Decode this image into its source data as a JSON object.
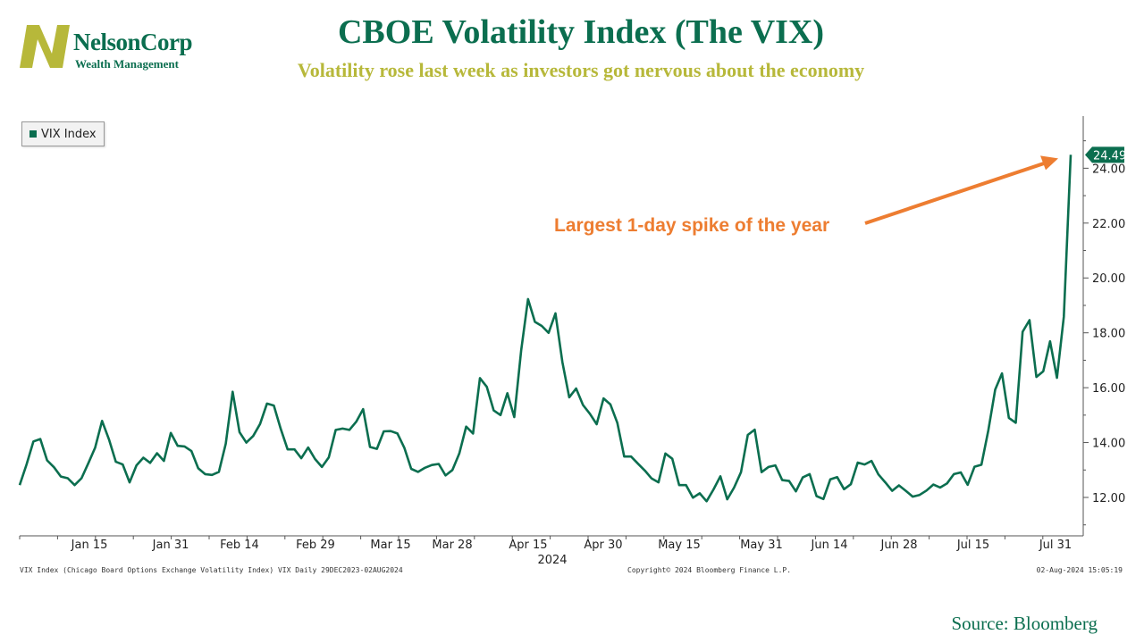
{
  "logo": {
    "name": "NelsonCorp",
    "subtitle": "Wealth Management"
  },
  "header": {
    "title": "CBOE Volatility Index (The VIX)",
    "subtitle": "Volatility rose last week as investors got nervous about the economy"
  },
  "legend": {
    "label": "VIX Index"
  },
  "annotation": {
    "text": "Largest 1-day spike of the year",
    "color": "#ed7d31"
  },
  "last_value_label": "24.49",
  "footer": {
    "left": "VIX Index (Chicago Board Options Exchange Volatility Index) VIX  Daily 29DEC2023-02AUG2024",
    "center": "Copyright© 2024 Bloomberg Finance L.P.",
    "right": "02-Aug-2024 15:05:19"
  },
  "source": "Source:  Bloomberg",
  "colors": {
    "line": "#0b6e4f",
    "title": "#0b6e4f",
    "subtitle": "#b7b83a",
    "logo_mark": "#b7b83a"
  },
  "chart_data": {
    "type": "line",
    "title": "CBOE Volatility Index (The VIX)",
    "series": [
      {
        "name": "VIX Index",
        "values": [
          12.45,
          13.2,
          14.04,
          14.13,
          13.35,
          13.1,
          12.76,
          12.7,
          12.45,
          12.7,
          13.25,
          13.82,
          14.79,
          14.12,
          13.3,
          13.2,
          12.55,
          13.17,
          13.45,
          13.26,
          13.61,
          13.33,
          14.35,
          13.88,
          13.86,
          13.69,
          13.06,
          12.85,
          12.82,
          12.93,
          13.96,
          15.85,
          14.38,
          14.0,
          14.24,
          14.68,
          15.42,
          15.35,
          14.5,
          13.75,
          13.75,
          13.43,
          13.82,
          13.4,
          13.11,
          13.46,
          14.46,
          14.51,
          14.46,
          14.76,
          15.22,
          13.84,
          13.77,
          14.41,
          14.42,
          14.33,
          13.81,
          13.04,
          12.93,
          13.08,
          13.18,
          13.22,
          12.8,
          13.0,
          13.6,
          14.58,
          14.33,
          16.35,
          16.03,
          15.17,
          15.0,
          15.8,
          14.93,
          17.35,
          19.23,
          18.4,
          18.25,
          18.0,
          18.71,
          16.94,
          15.65,
          15.97,
          15.37,
          15.05,
          14.67,
          15.61,
          15.39,
          14.72,
          13.49,
          13.49,
          13.23,
          12.98,
          12.69,
          12.55,
          13.6,
          13.41,
          12.45,
          12.45,
          11.99,
          12.15,
          11.86,
          12.29,
          12.77,
          11.93,
          12.36,
          12.92,
          14.28,
          14.47,
          12.92,
          13.11,
          13.17,
          12.63,
          12.6,
          12.22,
          12.73,
          12.85,
          12.05,
          11.94,
          12.66,
          12.74,
          12.3,
          12.48,
          13.27,
          13.2,
          13.33,
          12.84,
          12.55,
          12.24,
          12.44,
          12.24,
          12.03,
          12.09,
          12.25,
          12.47,
          12.36,
          12.51,
          12.85,
          12.91,
          12.46,
          13.12,
          13.19,
          14.44,
          15.93,
          16.52,
          14.9,
          14.72,
          18.04,
          18.46,
          16.39,
          16.6,
          17.69,
          16.36,
          18.59,
          24.49
        ]
      }
    ],
    "x_ticks": [
      "Jan 15",
      "Jan 31",
      "Feb 14",
      "Feb 29",
      "Mar 15",
      "Mar 28",
      "Apr 15",
      "Apr 30",
      "May 15",
      "May 31",
      "Jun 14",
      "Jun 28",
      "Jul 15",
      "Jul 31"
    ],
    "x_year_label": "2024",
    "y_ticks": [
      "12.00",
      "14.00",
      "16.00",
      "18.00",
      "20.00",
      "22.00",
      "24.00"
    ],
    "ylim": [
      10.6,
      25.9
    ],
    "grid": false,
    "legend_position": "top-left",
    "xlabel": "",
    "ylabel": ""
  }
}
